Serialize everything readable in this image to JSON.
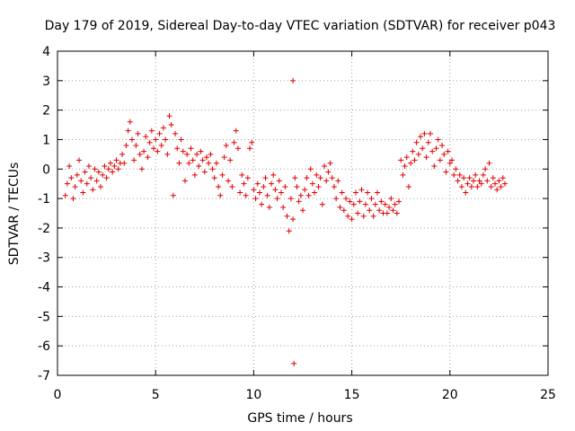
{
  "chart_data": {
    "type": "scatter",
    "title": "Day 179 of 2019, Sidereal Day-to-day VTEC variation (SDTVAR) for receiver p043",
    "xlabel": "GPS time / hours",
    "ylabel": "SDTVAR / TECUs",
    "xlim": [
      0,
      25
    ],
    "ylim": [
      -7,
      4
    ],
    "xticks": [
      0,
      5,
      10,
      15,
      20,
      25
    ],
    "xtick_labels": [
      "0",
      "5",
      "10",
      "15",
      "20",
      "25"
    ],
    "yticks": [
      4,
      3,
      2,
      1,
      0,
      -1,
      -2,
      -3,
      -4,
      -5,
      -6,
      -7
    ],
    "ytick_labels": [
      "4",
      "3",
      "2",
      "1",
      "0",
      "-1",
      "-2",
      "-3",
      "-4",
      "-5",
      "-6",
      "-7"
    ],
    "grid": true,
    "marker": "+",
    "series_color": "#e00000",
    "series": [
      {
        "name": "SDTVAR",
        "points": [
          [
            0.4,
            -0.9
          ],
          [
            0.5,
            -0.5
          ],
          [
            0.6,
            0.1
          ],
          [
            0.7,
            -0.3
          ],
          [
            0.8,
            -1.0
          ],
          [
            0.9,
            -0.6
          ],
          [
            1.0,
            -0.2
          ],
          [
            1.1,
            0.3
          ],
          [
            1.2,
            -0.4
          ],
          [
            1.3,
            -0.8
          ],
          [
            1.4,
            -0.1
          ],
          [
            1.5,
            -0.5
          ],
          [
            1.6,
            0.1
          ],
          [
            1.7,
            -0.3
          ],
          [
            1.8,
            -0.7
          ],
          [
            1.9,
            0.0
          ],
          [
            2.0,
            -0.4
          ],
          [
            2.1,
            -0.1
          ],
          [
            2.2,
            -0.6
          ],
          [
            2.3,
            -0.2
          ],
          [
            2.4,
            0.1
          ],
          [
            2.5,
            -0.3
          ],
          [
            2.6,
            0.0
          ],
          [
            2.7,
            0.2
          ],
          [
            2.8,
            -0.1
          ],
          [
            2.9,
            0.1
          ],
          [
            3.0,
            0.3
          ],
          [
            3.1,
            0.0
          ],
          [
            3.2,
            0.2
          ],
          [
            3.3,
            0.5
          ],
          [
            3.4,
            0.2
          ],
          [
            3.5,
            0.8
          ],
          [
            3.6,
            1.3
          ],
          [
            3.7,
            1.6
          ],
          [
            3.8,
            1.0
          ],
          [
            3.9,
            0.3
          ],
          [
            4.0,
            0.8
          ],
          [
            4.1,
            1.2
          ],
          [
            4.2,
            0.5
          ],
          [
            4.3,
            0.0
          ],
          [
            4.4,
            0.6
          ],
          [
            4.5,
            1.1
          ],
          [
            4.6,
            0.4
          ],
          [
            4.7,
            0.9
          ],
          [
            4.8,
            1.3
          ],
          [
            4.9,
            0.7
          ],
          [
            5.0,
            1.0
          ],
          [
            5.1,
            0.6
          ],
          [
            5.2,
            1.2
          ],
          [
            5.3,
            0.8
          ],
          [
            5.4,
            1.4
          ],
          [
            5.5,
            1.0
          ],
          [
            5.6,
            0.5
          ],
          [
            5.7,
            1.8
          ],
          [
            5.8,
            1.5
          ],
          [
            5.9,
            -0.9
          ],
          [
            6.0,
            1.2
          ],
          [
            6.1,
            0.7
          ],
          [
            6.2,
            0.2
          ],
          [
            6.3,
            1.0
          ],
          [
            6.4,
            0.6
          ],
          [
            6.5,
            -0.4
          ],
          [
            6.6,
            0.5
          ],
          [
            6.7,
            0.2
          ],
          [
            6.8,
            0.7
          ],
          [
            6.9,
            0.3
          ],
          [
            7.0,
            -0.2
          ],
          [
            7.1,
            0.5
          ],
          [
            7.2,
            0.1
          ],
          [
            7.3,
            0.6
          ],
          [
            7.4,
            0.3
          ],
          [
            7.5,
            -0.1
          ],
          [
            7.6,
            0.4
          ],
          [
            7.7,
            0.2
          ],
          [
            7.8,
            0.5
          ],
          [
            7.9,
            0.0
          ],
          [
            8.0,
            -0.3
          ],
          [
            8.1,
            0.2
          ],
          [
            8.2,
            -0.6
          ],
          [
            8.3,
            -0.9
          ],
          [
            8.4,
            -0.2
          ],
          [
            8.5,
            0.4
          ],
          [
            8.6,
            0.8
          ],
          [
            8.7,
            -0.4
          ],
          [
            8.8,
            0.3
          ],
          [
            8.9,
            -0.6
          ],
          [
            9.0,
            0.9
          ],
          [
            9.1,
            1.3
          ],
          [
            9.2,
            0.7
          ],
          [
            9.3,
            -0.8
          ],
          [
            9.4,
            -0.2
          ],
          [
            9.5,
            -0.5
          ],
          [
            9.6,
            -0.9
          ],
          [
            9.7,
            -0.3
          ],
          [
            9.8,
            0.7
          ],
          [
            9.9,
            0.9
          ],
          [
            10.0,
            -0.7
          ],
          [
            10.1,
            -1.0
          ],
          [
            10.2,
            -0.5
          ],
          [
            10.3,
            -0.8
          ],
          [
            10.4,
            -1.2
          ],
          [
            10.5,
            -0.6
          ],
          [
            10.6,
            -0.3
          ],
          [
            10.7,
            -0.9
          ],
          [
            10.8,
            -1.3
          ],
          [
            10.9,
            -0.5
          ],
          [
            11.0,
            -0.2
          ],
          [
            11.1,
            -0.7
          ],
          [
            11.2,
            -1.0
          ],
          [
            11.3,
            -0.4
          ],
          [
            11.4,
            -0.8
          ],
          [
            11.5,
            -1.3
          ],
          [
            11.6,
            -0.6
          ],
          [
            11.7,
            -1.6
          ],
          [
            11.8,
            -2.1
          ],
          [
            11.9,
            -1.0
          ],
          [
            12.0,
            -1.7
          ],
          [
            12.0,
            3.0
          ],
          [
            12.05,
            -6.6
          ],
          [
            12.1,
            -0.3
          ],
          [
            12.2,
            -0.6
          ],
          [
            12.3,
            -1.1
          ],
          [
            12.4,
            -0.9
          ],
          [
            12.5,
            -1.4
          ],
          [
            12.6,
            -0.7
          ],
          [
            12.7,
            -0.3
          ],
          [
            12.8,
            -0.9
          ],
          [
            12.9,
            0.0
          ],
          [
            13.0,
            -0.5
          ],
          [
            13.1,
            -0.8
          ],
          [
            13.2,
            -0.2
          ],
          [
            13.3,
            -0.6
          ],
          [
            13.4,
            -0.3
          ],
          [
            13.5,
            -1.2
          ],
          [
            13.6,
            0.1
          ],
          [
            13.7,
            -0.4
          ],
          [
            13.8,
            -0.1
          ],
          [
            13.9,
            0.2
          ],
          [
            14.0,
            -0.3
          ],
          [
            14.1,
            -0.6
          ],
          [
            14.2,
            -1.0
          ],
          [
            14.3,
            -0.4
          ],
          [
            14.4,
            -1.3
          ],
          [
            14.5,
            -0.8
          ],
          [
            14.6,
            -1.4
          ],
          [
            14.7,
            -1.0
          ],
          [
            14.8,
            -1.6
          ],
          [
            14.9,
            -1.1
          ],
          [
            15.0,
            -1.7
          ],
          [
            15.1,
            -1.2
          ],
          [
            15.2,
            -0.8
          ],
          [
            15.3,
            -1.5
          ],
          [
            15.4,
            -1.1
          ],
          [
            15.5,
            -0.7
          ],
          [
            15.6,
            -1.6
          ],
          [
            15.7,
            -1.2
          ],
          [
            15.8,
            -0.8
          ],
          [
            15.9,
            -1.4
          ],
          [
            16.0,
            -1.0
          ],
          [
            16.1,
            -1.6
          ],
          [
            16.2,
            -1.2
          ],
          [
            16.3,
            -0.8
          ],
          [
            16.4,
            -1.4
          ],
          [
            16.5,
            -1.1
          ],
          [
            16.6,
            -1.5
          ],
          [
            16.7,
            -1.2
          ],
          [
            16.8,
            -1.5
          ],
          [
            16.9,
            -1.3
          ],
          [
            17.0,
            -1.0
          ],
          [
            17.1,
            -1.4
          ],
          [
            17.2,
            -1.2
          ],
          [
            17.3,
            -1.5
          ],
          [
            17.4,
            -1.1
          ],
          [
            17.5,
            0.3
          ],
          [
            17.6,
            -0.2
          ],
          [
            17.7,
            0.1
          ],
          [
            17.8,
            0.4
          ],
          [
            17.9,
            -0.6
          ],
          [
            18.0,
            0.2
          ],
          [
            18.1,
            0.6
          ],
          [
            18.2,
            0.3
          ],
          [
            18.3,
            0.9
          ],
          [
            18.4,
            0.5
          ],
          [
            18.5,
            1.1
          ],
          [
            18.6,
            0.7
          ],
          [
            18.7,
            1.2
          ],
          [
            18.8,
            0.4
          ],
          [
            18.9,
            0.9
          ],
          [
            19.0,
            1.2
          ],
          [
            19.1,
            0.6
          ],
          [
            19.2,
            0.1
          ],
          [
            19.3,
            0.7
          ],
          [
            19.4,
            1.0
          ],
          [
            19.5,
            0.3
          ],
          [
            19.6,
            0.8
          ],
          [
            19.7,
            0.5
          ],
          [
            19.8,
            -0.1
          ],
          [
            19.9,
            0.6
          ],
          [
            20.0,
            0.2
          ],
          [
            20.1,
            0.3
          ],
          [
            20.2,
            -0.2
          ],
          [
            20.3,
            0.0
          ],
          [
            20.4,
            -0.4
          ],
          [
            20.5,
            -0.2
          ],
          [
            20.6,
            -0.6
          ],
          [
            20.7,
            -0.3
          ],
          [
            20.8,
            -0.8
          ],
          [
            20.9,
            -0.5
          ],
          [
            21.0,
            -0.3
          ],
          [
            21.1,
            -0.6
          ],
          [
            21.2,
            -0.4
          ],
          [
            21.3,
            -0.2
          ],
          [
            21.4,
            -0.6
          ],
          [
            21.5,
            -0.4
          ],
          [
            21.6,
            -0.5
          ],
          [
            21.7,
            -0.2
          ],
          [
            21.8,
            0.0
          ],
          [
            21.9,
            -0.4
          ],
          [
            22.0,
            0.2
          ],
          [
            22.1,
            -0.6
          ],
          [
            22.2,
            -0.3
          ],
          [
            22.3,
            -0.5
          ],
          [
            22.4,
            -0.7
          ],
          [
            22.5,
            -0.4
          ],
          [
            22.6,
            -0.6
          ],
          [
            22.7,
            -0.3
          ],
          [
            22.8,
            -0.5
          ]
        ]
      }
    ]
  }
}
